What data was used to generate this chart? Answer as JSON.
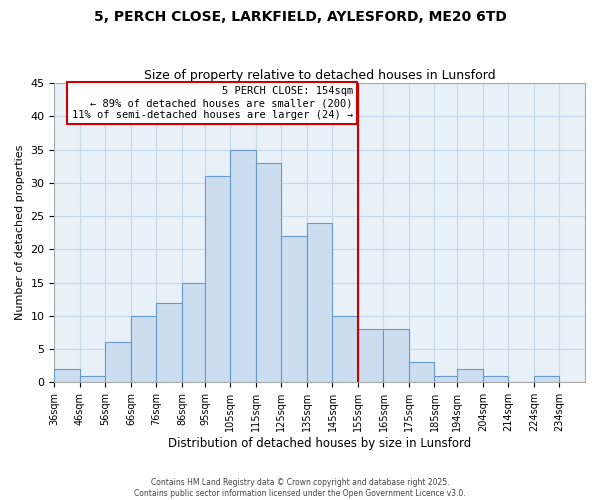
{
  "title": "5, PERCH CLOSE, LARKFIELD, AYLESFORD, ME20 6TD",
  "subtitle": "Size of property relative to detached houses in Lunsford",
  "xlabel": "Distribution of detached houses by size in Lunsford",
  "ylabel": "Number of detached properties",
  "bar_edges": [
    36,
    46,
    56,
    66,
    76,
    86,
    95,
    105,
    115,
    125,
    135,
    145,
    155,
    165,
    175,
    185,
    194,
    204,
    214,
    224,
    234
  ],
  "bar_heights": [
    2,
    1,
    6,
    10,
    12,
    15,
    31,
    35,
    33,
    22,
    24,
    10,
    8,
    8,
    3,
    1,
    2,
    1,
    0,
    1
  ],
  "bar_color": "#ccddef",
  "bar_edgecolor": "#6699cc",
  "vline_x": 155,
  "vline_color": "#cc0000",
  "annotation_title": "5 PERCH CLOSE: 154sqm",
  "annotation_line1": "← 89% of detached houses are smaller (200)",
  "annotation_line2": "11% of semi-detached houses are larger (24) →",
  "annotation_box_edgecolor": "#cc0000",
  "tick_labels": [
    "36sqm",
    "46sqm",
    "56sqm",
    "66sqm",
    "76sqm",
    "86sqm",
    "95sqm",
    "105sqm",
    "115sqm",
    "125sqm",
    "135sqm",
    "145sqm",
    "155sqm",
    "165sqm",
    "175sqm",
    "185sqm",
    "194sqm",
    "204sqm",
    "214sqm",
    "224sqm",
    "234sqm"
  ],
  "ylim": [
    0,
    45
  ],
  "yticks": [
    0,
    5,
    10,
    15,
    20,
    25,
    30,
    35,
    40,
    45
  ],
  "grid_color": "#c8d8e8",
  "bg_color": "#e8f0f8",
  "footer_line1": "Contains HM Land Registry data © Crown copyright and database right 2025.",
  "footer_line2": "Contains public sector information licensed under the Open Government Licence v3.0."
}
